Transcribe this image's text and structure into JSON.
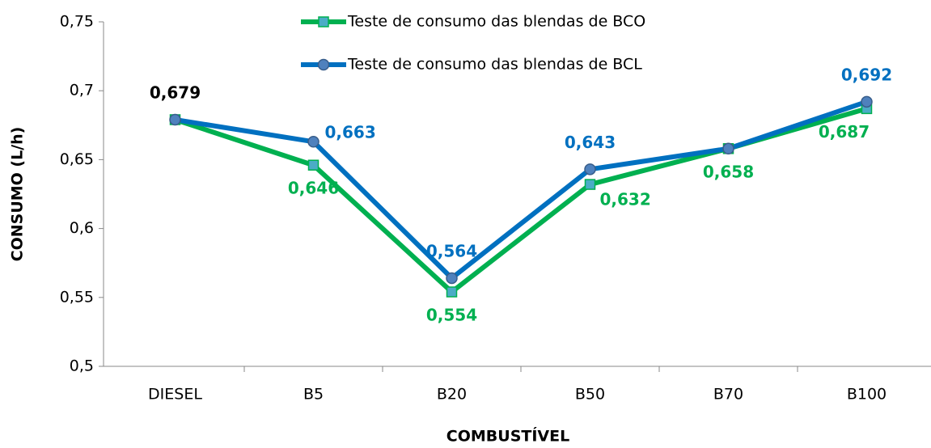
{
  "chart_data": {
    "type": "line",
    "y_label": "CONSUMO (L/h)",
    "x_label": "COMBUSTÍVEL",
    "categories": [
      "DIESEL",
      "B5",
      "B20",
      "B50",
      "B70",
      "B100"
    ],
    "series": [
      {
        "name": "Teste de consumo das blendas de BCO",
        "color": "#00b050",
        "marker": "square",
        "values": [
          0.679,
          0.646,
          0.554,
          0.632,
          0.658,
          0.687
        ],
        "value_labels": [
          null,
          "0,646",
          "0,554",
          "0,632",
          "0,658",
          "0,687"
        ],
        "value_label_colors": [
          null,
          "#00b050",
          "#00b050",
          "#00b050",
          "#00b050",
          "#00b050"
        ]
      },
      {
        "name": "Teste de consumo das blendas de BCL",
        "color": "#0070c0",
        "marker": "circle",
        "values": [
          0.679,
          0.663,
          0.564,
          0.643,
          0.658,
          0.692
        ],
        "value_labels": [
          "0,679",
          "0,663",
          "0,564",
          "0,643",
          null,
          "0,692"
        ],
        "value_label_colors": [
          "#000000",
          "#0070c0",
          "#0070c0",
          "#0070c0",
          null,
          "#0070c0"
        ]
      }
    ],
    "ylim": [
      0.5,
      0.75
    ],
    "yticks": [
      {
        "value": 0.5,
        "label": "0,5"
      },
      {
        "value": 0.55,
        "label": "0,55"
      },
      {
        "value": 0.6,
        "label": "0,6"
      },
      {
        "value": 0.65,
        "label": "0,65"
      },
      {
        "value": 0.7,
        "label": "0,7"
      },
      {
        "value": 0.75,
        "label": "0,75"
      }
    ],
    "grid": false
  }
}
